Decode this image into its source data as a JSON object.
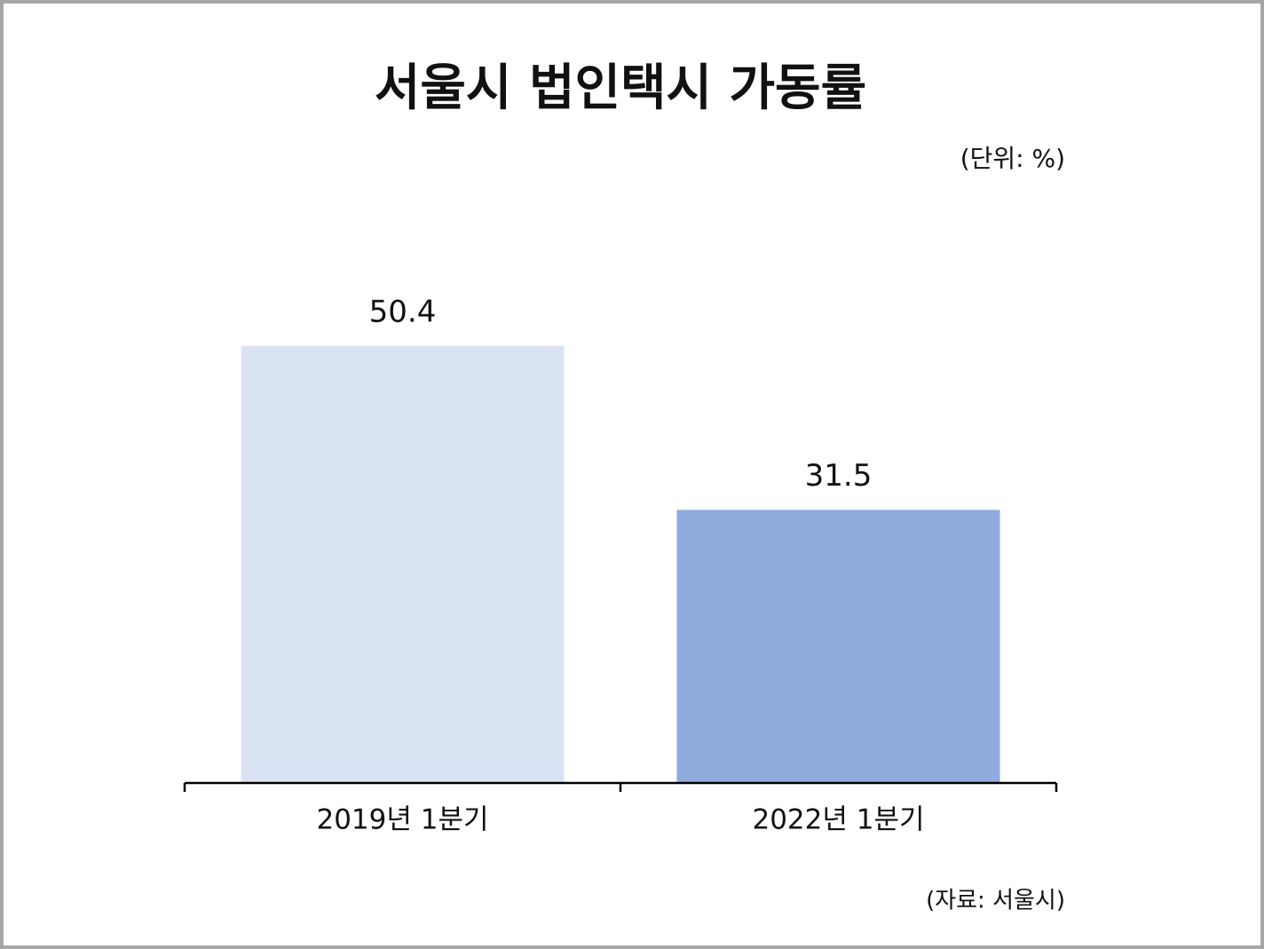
{
  "chart_data": {
    "type": "bar",
    "title": "서울시 법인택시 가동률",
    "subtitle": "(단위: %)",
    "source": "(자료: 서울시)",
    "categories": [
      "2019년 1분기",
      "2022년 1분기"
    ],
    "values": [
      50.4,
      31.5
    ],
    "colors": [
      "#dae3f3",
      "#8faadc"
    ],
    "ylim": [
      0,
      60
    ],
    "grid": false
  }
}
